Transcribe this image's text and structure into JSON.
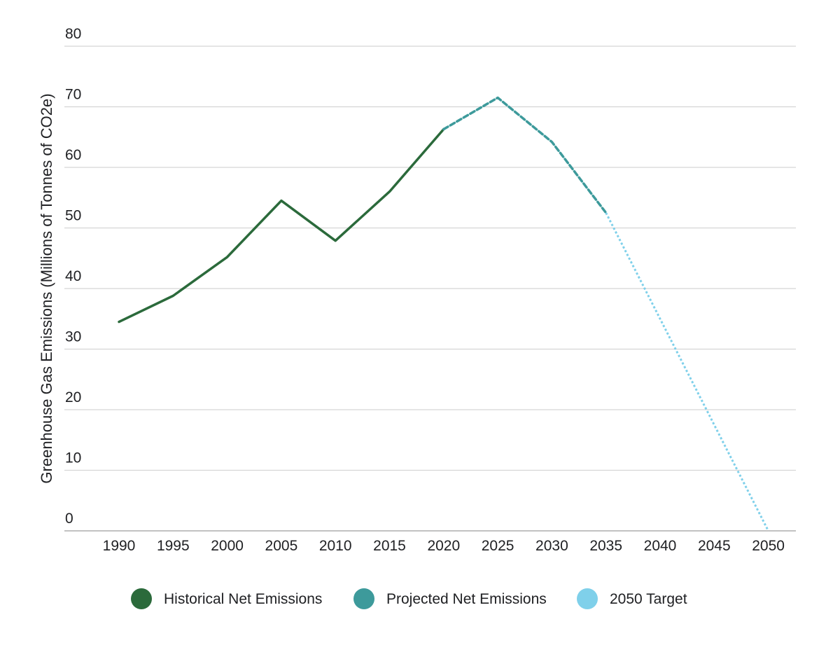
{
  "chart_data": {
    "type": "line",
    "title": "",
    "xlabel": "",
    "ylabel": "Greenhouse Gas Emissions (Millions of Tonnes of CO2e)",
    "categories": [
      "1990",
      "1995",
      "2000",
      "2005",
      "2010",
      "2015",
      "2020",
      "2025",
      "2030",
      "2035",
      "2040",
      "2045",
      "2050"
    ],
    "ylim": [
      0,
      80
    ],
    "yticks": [
      "0",
      "10",
      "20",
      "30",
      "40",
      "50",
      "60",
      "70",
      "80"
    ],
    "grid": "horizontal",
    "legend_position": "bottom",
    "series": [
      {
        "name": "Historical Net Emissions",
        "color": "#2b6a3b",
        "style": "solid",
        "points": [
          {
            "x": "1990",
            "y": 34.5
          },
          {
            "x": "1995",
            "y": 38.8
          },
          {
            "x": "2000",
            "y": 45.2
          },
          {
            "x": "2005",
            "y": 54.5
          },
          {
            "x": "2010",
            "y": 47.9
          },
          {
            "x": "2015",
            "y": 56.0
          },
          {
            "x": "2020",
            "y": 66.3
          }
        ]
      },
      {
        "name": "Projected Net Emissions",
        "color": "#3d9a9b",
        "style": "dashed",
        "points": [
          {
            "x": "2020",
            "y": 66.3
          },
          {
            "x": "2025",
            "y": 71.5
          },
          {
            "x": "2030",
            "y": 64.2
          },
          {
            "x": "2035",
            "y": 52.5
          }
        ]
      },
      {
        "name": "2050 Target",
        "color": "#7fd0ea",
        "style": "dotted",
        "points": [
          {
            "x": "2035",
            "y": 52.5
          },
          {
            "x": "2050",
            "y": 0
          }
        ]
      }
    ]
  },
  "legend": {
    "items": [
      {
        "label": "Historical Net Emissions",
        "color": "#2b6a3b"
      },
      {
        "label": "Projected Net Emissions",
        "color": "#3d9a9b"
      },
      {
        "label": "2050 Target",
        "color": "#7fd0ea"
      }
    ]
  }
}
